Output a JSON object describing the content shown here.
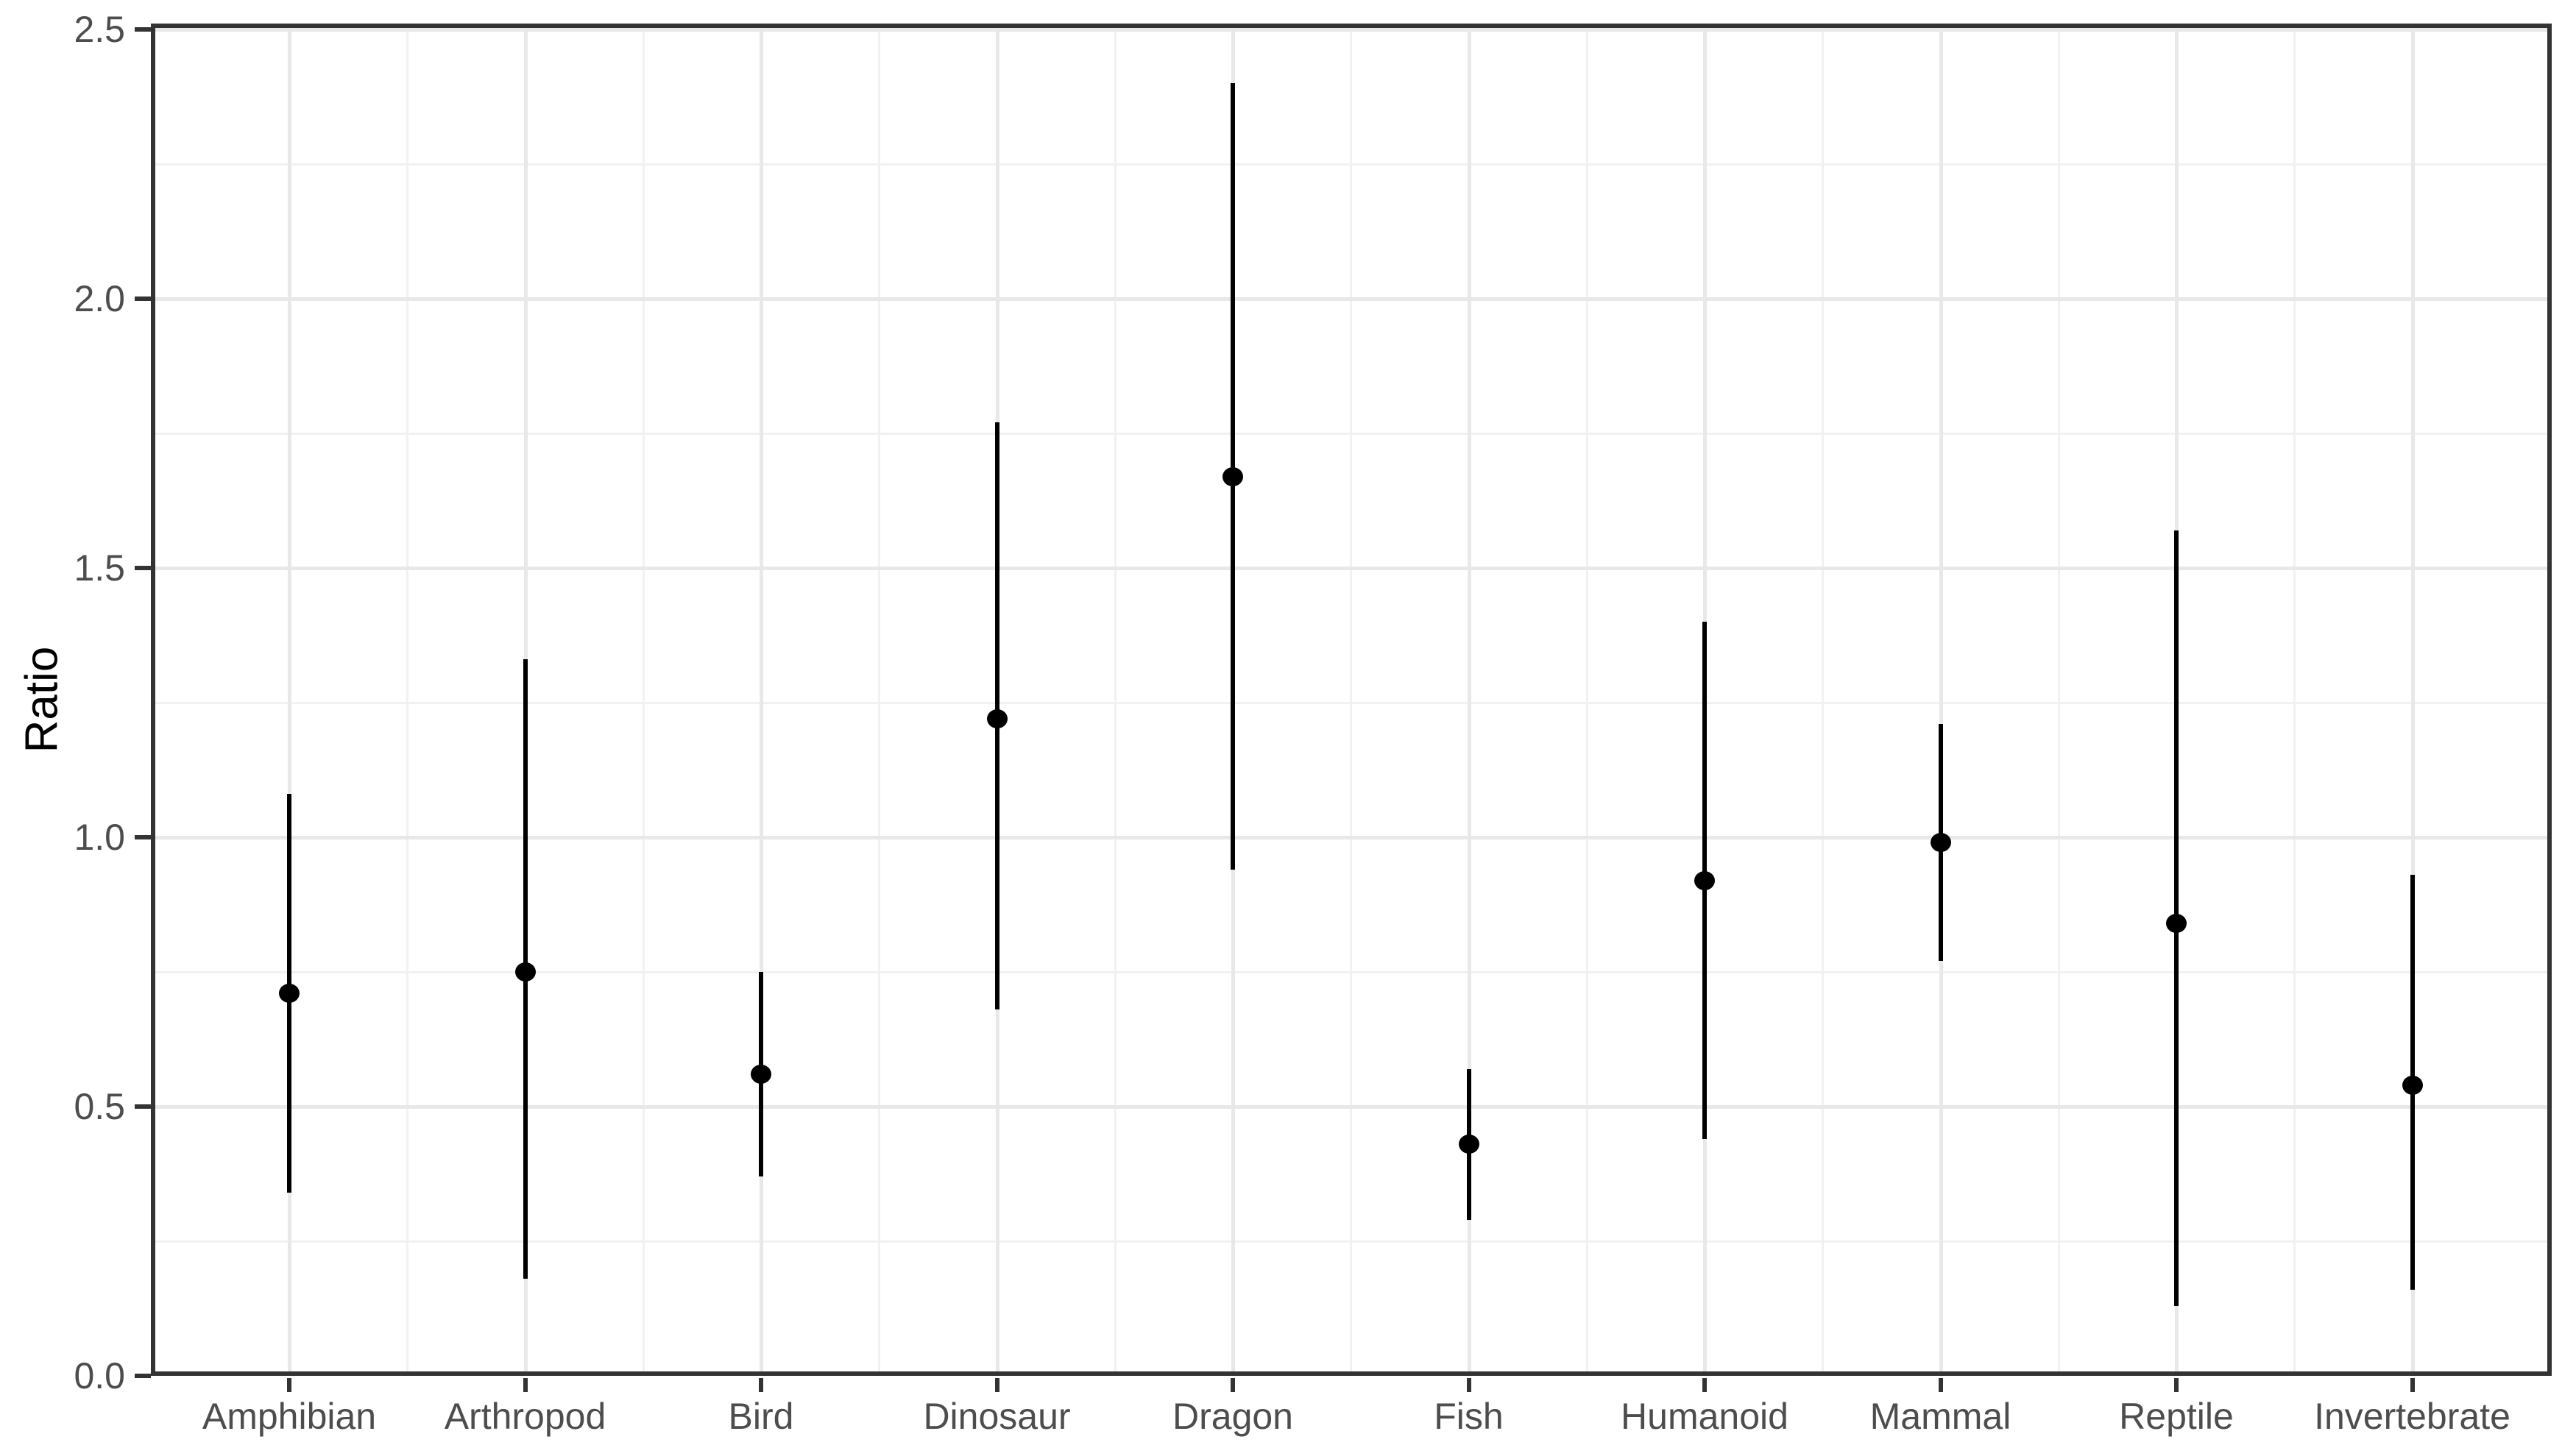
{
  "chart_data": {
    "type": "pointrange",
    "title": "",
    "xlabel": "",
    "ylabel": "Ratio",
    "categories": [
      "Amphibian",
      "Arthropod",
      "Bird",
      "Dinosaur",
      "Dragon",
      "Fish",
      "Humanoid",
      "Mammal",
      "Reptile",
      "Invertebrate"
    ],
    "series": [
      {
        "name": "Ratio point estimate with interval",
        "mid": [
          0.71,
          0.75,
          0.56,
          1.22,
          1.67,
          0.43,
          0.92,
          0.99,
          0.84,
          0.54
        ],
        "low": [
          0.34,
          0.18,
          0.37,
          0.68,
          0.94,
          0.29,
          0.44,
          0.77,
          0.13,
          0.16
        ],
        "high": [
          1.08,
          1.33,
          0.75,
          1.77,
          2.4,
          0.57,
          1.4,
          1.21,
          1.57,
          0.93
        ]
      }
    ],
    "ylim": [
      0,
      2.5
    ],
    "yticks": [
      0.0,
      0.5,
      1.0,
      1.5,
      2.0,
      2.5
    ],
    "ytick_labels": [
      "0.0",
      "0.5",
      "1.0",
      "1.5",
      "2.0",
      "2.5"
    ],
    "grid": "major and minor, horizontal every 0.25, vertical at categories and midpoints",
    "legend": "none",
    "colors": {
      "point": "#000000",
      "range_line": "#000000",
      "grid_major": "#e8e8e8",
      "grid_minor": "#f1f1f1",
      "panel_border": "#333333",
      "tick_mark": "#333333",
      "tick_text": "#4d4d4d",
      "axis_title_text": "#000000",
      "panel_background": "#ffffff"
    }
  }
}
